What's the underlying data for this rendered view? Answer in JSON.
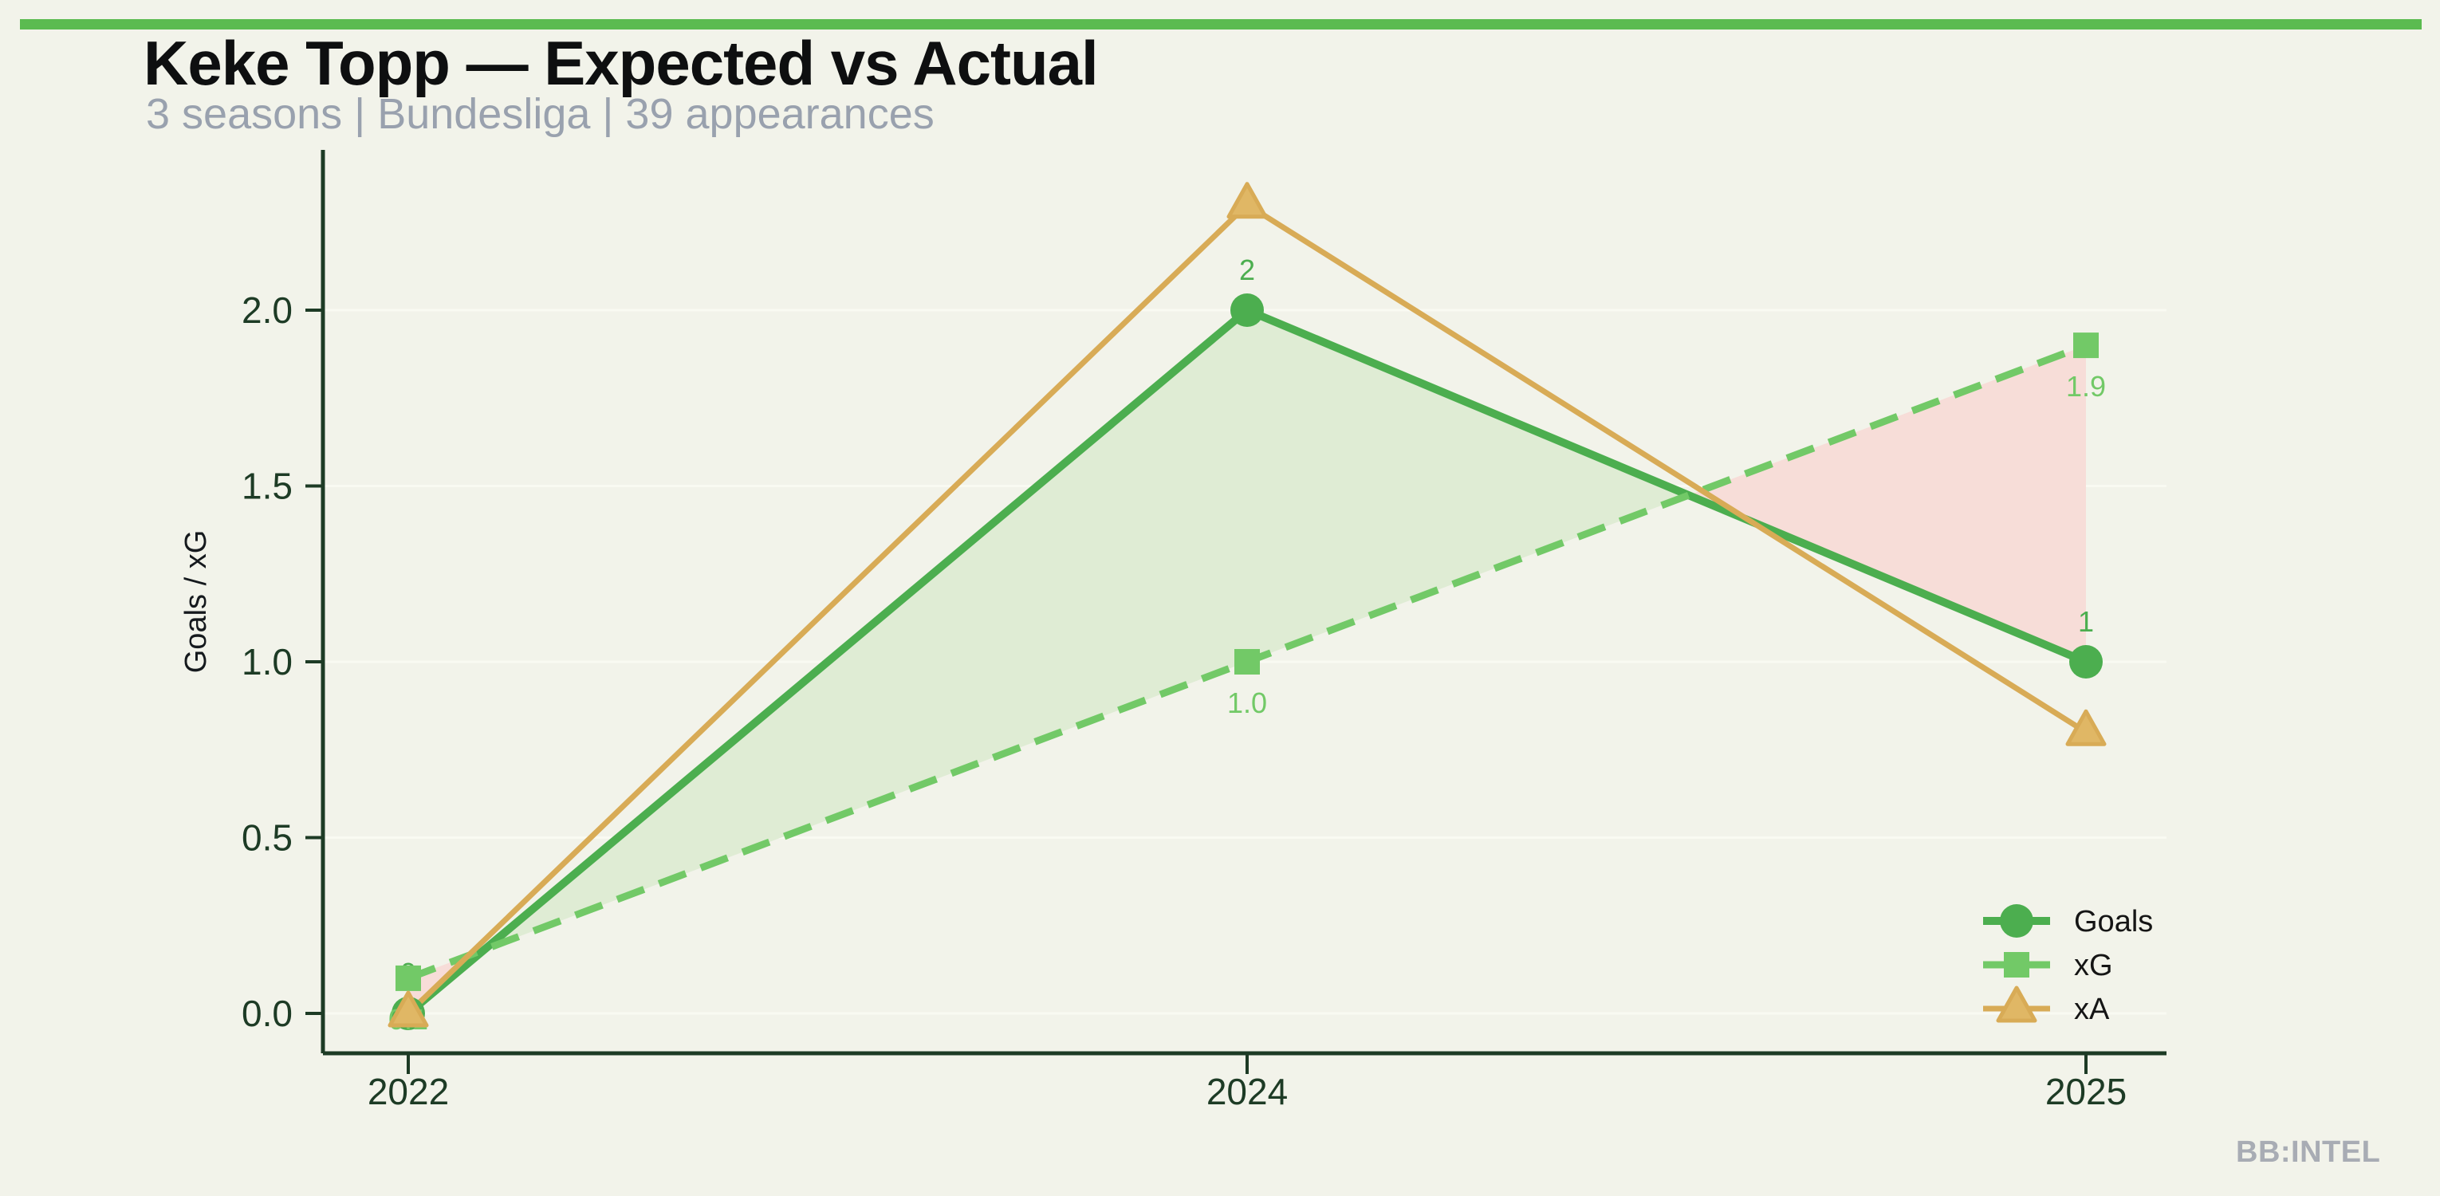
{
  "header": {
    "title": "Keke Topp — Expected vs Actual",
    "subtitle": "3 seasons | Bundesliga | 39 appearances"
  },
  "watermark": "BB:INTEL",
  "colors": {
    "background": "#f2f3ea",
    "top_bar": "#5bbb50",
    "title": "#0e0f10",
    "subtitle": "#99a1ae",
    "axis": "#1d3b25",
    "grid": "#f9faf2",
    "axis_label": "#15191d",
    "legend_text": "#151515",
    "watermark": "#a8acb4",
    "fill_goals_over_xg": "#dfecd4",
    "fill_xg_over_goals": "#f7ddd8"
  },
  "chart_data": {
    "type": "line",
    "title": "Keke Topp — Expected vs Actual",
    "x_categories": [
      "2022",
      "2024",
      "2025"
    ],
    "ylabel": "Goals / xG",
    "yticks": [
      "0.0",
      "0.5",
      "1.0",
      "1.5",
      "2.0"
    ],
    "ylim": [
      0,
      2.45
    ],
    "grid": "horizontal",
    "legend_position": "lower right",
    "series": [
      {
        "name": "Goals",
        "values": [
          0,
          2,
          1
        ],
        "labels": [
          "0",
          "2",
          "1"
        ],
        "label_position": "above",
        "color": "#4cae4f",
        "marker": "circle",
        "line_style": "solid",
        "line_width": 10
      },
      {
        "name": "xG",
        "values": [
          0.1,
          1.0,
          1.9
        ],
        "labels": [
          "0.1",
          "1.0",
          "1.9"
        ],
        "label_position": "below",
        "color": "#72c967",
        "marker": "square",
        "line_style": "dashed",
        "line_width": 9
      },
      {
        "name": "xA",
        "values": [
          0.0,
          2.3,
          0.8
        ],
        "labels": [],
        "label_position": "above",
        "color": "#d8ab56",
        "marker": "triangle",
        "marker_fill": "#e0b765",
        "line_style": "solid",
        "line_width": 7
      }
    ],
    "fill_between": {
      "series_a": "Goals",
      "series_b": "xG"
    }
  }
}
